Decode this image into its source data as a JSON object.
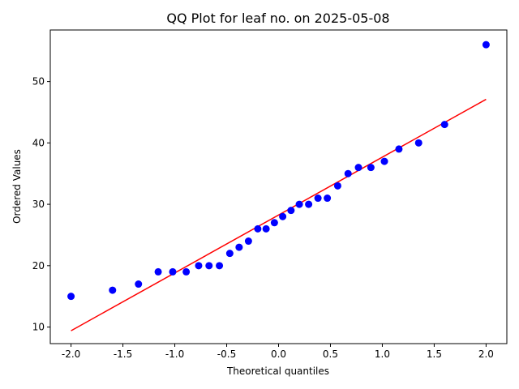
{
  "chart_data": {
    "type": "scatter",
    "title": "QQ Plot for leaf no. on 2025-05-08",
    "xlabel": "Theoretical quantiles",
    "ylabel": "Ordered Values",
    "xlim": [
      -2.2,
      2.2
    ],
    "ylim": [
      7.3,
      58.4
    ],
    "xticks": [
      -2.0,
      -1.5,
      -1.0,
      -0.5,
      0.0,
      0.5,
      1.0,
      1.5,
      2.0
    ],
    "xtick_labels": [
      "-2.0",
      "-1.5",
      "-1.0",
      "-0.5",
      "0.0",
      "0.5",
      "1.0",
      "1.5",
      "2.0"
    ],
    "yticks": [
      10,
      20,
      30,
      40,
      50
    ],
    "ytick_labels": [
      "10",
      "20",
      "30",
      "40",
      "50"
    ],
    "grid": false,
    "series": [
      {
        "kind": "points",
        "color": "#0000ff",
        "x": [
          -2.0,
          -1.6,
          -1.35,
          -1.16,
          -1.02,
          -0.89,
          -0.77,
          -0.67,
          -0.57,
          -0.47,
          -0.38,
          -0.29,
          -0.2,
          -0.12,
          -0.04,
          0.04,
          0.12,
          0.2,
          0.29,
          0.38,
          0.47,
          0.57,
          0.67,
          0.77,
          0.89,
          1.02,
          1.16,
          1.35,
          1.6,
          2.0
        ],
        "y": [
          15,
          16,
          17,
          19,
          19,
          19,
          20,
          20,
          20,
          22,
          23,
          24,
          26,
          26,
          27,
          28,
          29,
          30,
          30,
          31,
          31,
          33,
          35,
          36,
          36,
          37,
          39,
          40,
          43,
          56
        ]
      },
      {
        "kind": "fit-line",
        "color": "#ff0000",
        "x": [
          -2.0,
          2.0
        ],
        "y": [
          9.4,
          47.1
        ]
      }
    ]
  }
}
